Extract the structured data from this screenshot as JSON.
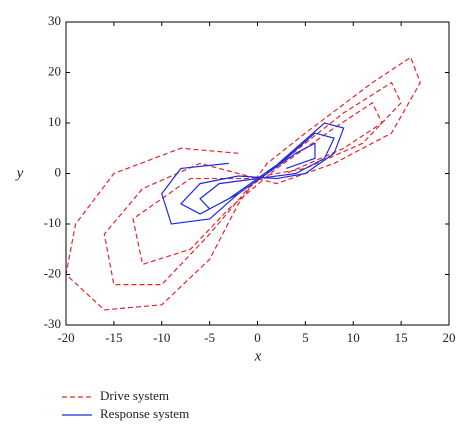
{
  "chart_data": {
    "type": "line",
    "x_label": "x",
    "y_label": "y",
    "xlim": [
      -20,
      20
    ],
    "xticks": [
      -20,
      -15,
      -10,
      -5,
      0,
      5,
      10,
      15,
      20
    ],
    "ylim": [
      -30,
      30
    ],
    "yticks": [
      -30,
      -20,
      -10,
      0,
      10,
      20,
      30
    ],
    "series": [
      {
        "name": "Drive system",
        "color": "#e8262b",
        "dash": true,
        "x": [
          -2,
          -8,
          -15,
          -19,
          -20,
          -16,
          -10,
          -5,
          -2,
          1,
          5,
          12,
          16,
          17,
          14,
          8,
          2,
          0,
          -6,
          -12,
          -16,
          -15,
          -10,
          -5,
          -1,
          3,
          9,
          14,
          15,
          11,
          5,
          -1,
          -7,
          -13,
          -12,
          -7,
          -3,
          2,
          8,
          12,
          13,
          9,
          3
        ],
        "values": [
          4,
          5,
          0,
          -10,
          -20,
          -27,
          -26,
          -17,
          -6,
          2,
          8,
          18,
          23,
          18,
          8,
          2,
          -2,
          -1,
          2,
          -3,
          -12,
          -22,
          -22,
          -12,
          -3,
          3,
          12,
          18,
          14,
          6,
          1,
          -1,
          -1,
          -9,
          -18,
          -15,
          -7,
          1,
          9,
          14,
          10,
          5,
          0
        ]
      },
      {
        "name": "Response system",
        "color": "#1f2be0",
        "dash": false,
        "x": [
          -3,
          -8,
          -10,
          -9,
          -5,
          -2,
          1,
          4,
          7,
          9,
          8,
          5,
          2,
          -2,
          -6,
          -8,
          -6,
          -3,
          0,
          3,
          6,
          8,
          7,
          4,
          0,
          -4,
          -6,
          -5,
          -2,
          1,
          4,
          6,
          6,
          3
        ],
        "values": [
          2,
          1,
          -4,
          -10,
          -9,
          -4,
          0,
          5,
          10,
          9,
          4,
          0,
          -1,
          -0.5,
          -2,
          -6,
          -8,
          -5,
          -1,
          3,
          8,
          7,
          3,
          0,
          -1,
          -2,
          -5,
          -7,
          -4,
          0,
          4,
          6,
          3,
          1
        ]
      }
    ]
  }
}
